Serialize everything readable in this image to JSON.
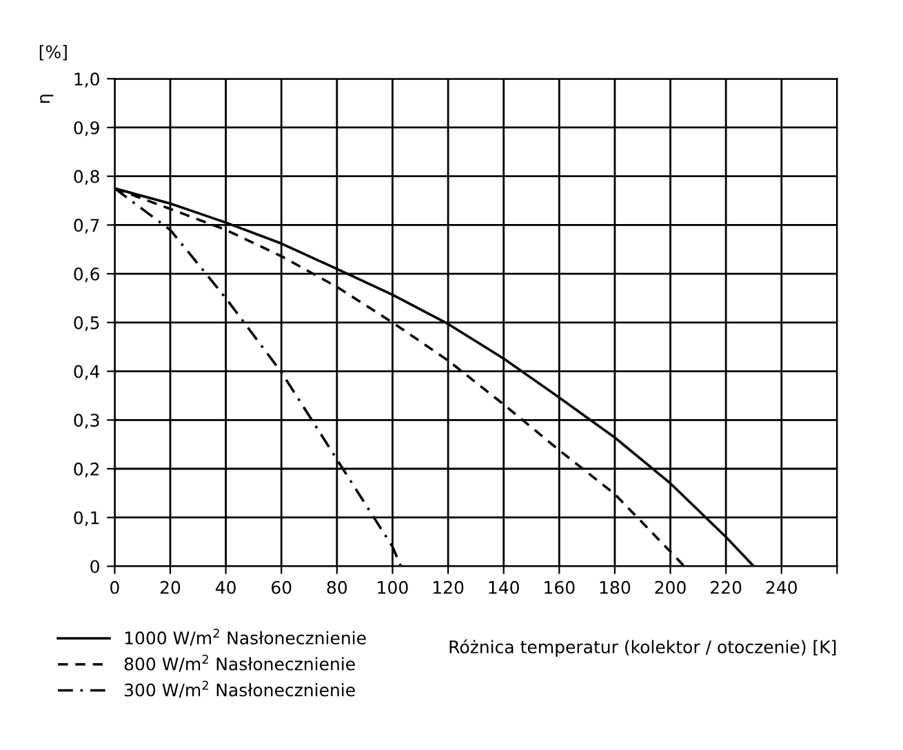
{
  "chart_data": {
    "type": "line",
    "xlabel": "Różnica temperatur (kolektor / otoczenie) [K]",
    "ylabel": "η",
    "annotations": [
      "[%]"
    ],
    "xlim": [
      0,
      260
    ],
    "ylim": [
      0,
      1.0
    ],
    "xticks": [
      0,
      20,
      40,
      60,
      80,
      100,
      120,
      140,
      160,
      180,
      200,
      220,
      240,
      {
        "value": 260,
        "label": null
      }
    ],
    "yticks": [
      {
        "value": 0,
        "label": "0"
      },
      {
        "value": 0.1,
        "label": "0,1"
      },
      {
        "value": 0.2,
        "label": "0,2"
      },
      {
        "value": 0.3,
        "label": "0,3"
      },
      {
        "value": 0.4,
        "label": "0,4"
      },
      {
        "value": 0.5,
        "label": "0,5"
      },
      {
        "value": 0.6,
        "label": "0,6"
      },
      {
        "value": 0.7,
        "label": "0,7"
      },
      {
        "value": 0.8,
        "label": "0,8"
      },
      {
        "value": 0.9,
        "label": "0,9"
      },
      {
        "value": 1.0,
        "label": "1,0"
      }
    ],
    "grid": true,
    "legend": "bottom left",
    "marker": "none",
    "series": [
      {
        "name": "1000 W/m$^{2}$ Nasłonecznienie",
        "color": "#000000",
        "line_style": "solid",
        "x": [
          0,
          20,
          40,
          60,
          80,
          100,
          120,
          140,
          160,
          180,
          200,
          220,
          230
        ],
        "values": [
          0.775,
          0.744,
          0.705,
          0.662,
          0.61,
          0.557,
          0.497,
          0.426,
          0.346,
          0.264,
          0.17,
          0.06,
          0
        ]
      },
      {
        "name": "800 W/m$^{2}$ Nasłonecznienie",
        "color": "#000000",
        "line_style": "dashed",
        "x": [
          0,
          20,
          40,
          60,
          80,
          100,
          120,
          140,
          160,
          180,
          200,
          205
        ],
        "values": [
          0.775,
          0.733,
          0.69,
          0.636,
          0.573,
          0.5,
          0.422,
          0.332,
          0.238,
          0.148,
          0.03,
          0
        ]
      },
      {
        "name": "300 W/m$^{2}$ Nasłonecznienie",
        "color": "#000000",
        "line_style": "dashdot",
        "x": [
          0,
          20,
          40,
          60,
          80,
          100,
          103
        ],
        "values": [
          0.775,
          0.69,
          0.55,
          0.398,
          0.219,
          0.04,
          0
        ]
      }
    ]
  }
}
